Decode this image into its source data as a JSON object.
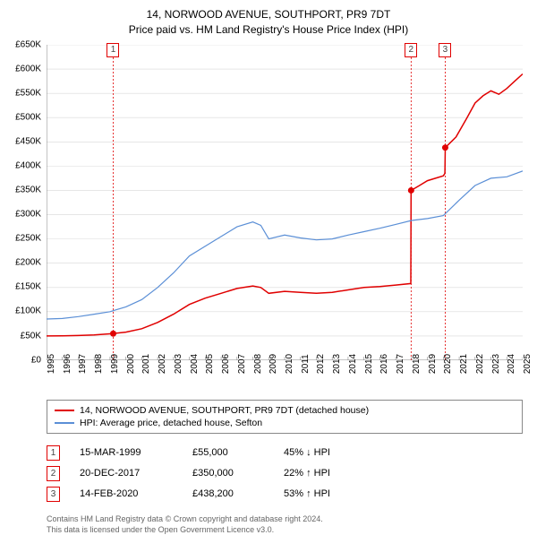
{
  "title": {
    "line1": "14, NORWOOD AVENUE, SOUTHPORT, PR9 7DT",
    "line2": "Price paid vs. HM Land Registry's House Price Index (HPI)"
  },
  "chart": {
    "type": "line",
    "x_domain": [
      1995,
      2025
    ],
    "y_domain": [
      0,
      650000
    ],
    "y_ticks": [
      0,
      50000,
      100000,
      150000,
      200000,
      250000,
      300000,
      350000,
      400000,
      450000,
      500000,
      550000,
      600000,
      650000
    ],
    "y_tick_labels": [
      "£0",
      "£50K",
      "£100K",
      "£150K",
      "£200K",
      "£250K",
      "£300K",
      "£350K",
      "£400K",
      "£450K",
      "£500K",
      "£550K",
      "£600K",
      "£650K"
    ],
    "x_ticks": [
      1995,
      1996,
      1997,
      1998,
      1999,
      2000,
      2001,
      2002,
      2003,
      2004,
      2005,
      2006,
      2007,
      2008,
      2009,
      2010,
      2011,
      2012,
      2013,
      2014,
      2015,
      2016,
      2017,
      2018,
      2019,
      2020,
      2021,
      2022,
      2023,
      2024,
      2025
    ],
    "grid_color": "#d8d8d8",
    "axis_color": "#888888",
    "background_color": "#ffffff",
    "tick_fontsize": 10,
    "series": [
      {
        "key": "property",
        "label": "14, NORWOOD AVENUE, SOUTHPORT, PR9 7DT (detached house)",
        "color": "#e00000",
        "line_width": 1.5,
        "points": [
          [
            1995.0,
            50000
          ],
          [
            1996.0,
            50500
          ],
          [
            1997.0,
            51000
          ],
          [
            1998.0,
            52000
          ],
          [
            1999.2,
            55000
          ],
          [
            2000.0,
            58000
          ],
          [
            2001.0,
            65000
          ],
          [
            2002.0,
            78000
          ],
          [
            2003.0,
            95000
          ],
          [
            2004.0,
            115000
          ],
          [
            2005.0,
            128000
          ],
          [
            2006.0,
            138000
          ],
          [
            2007.0,
            148000
          ],
          [
            2008.0,
            153000
          ],
          [
            2008.5,
            150000
          ],
          [
            2009.0,
            138000
          ],
          [
            2010.0,
            142000
          ],
          [
            2011.0,
            140000
          ],
          [
            2012.0,
            138000
          ],
          [
            2013.0,
            140000
          ],
          [
            2014.0,
            145000
          ],
          [
            2015.0,
            150000
          ],
          [
            2016.0,
            152000
          ],
          [
            2017.0,
            155000
          ],
          [
            2017.95,
            158000
          ],
          [
            2017.97,
            350000
          ],
          [
            2018.5,
            360000
          ],
          [
            2019.0,
            370000
          ],
          [
            2020.0,
            380000
          ],
          [
            2020.1,
            385000
          ],
          [
            2020.12,
            438200
          ],
          [
            2020.8,
            460000
          ],
          [
            2021.5,
            500000
          ],
          [
            2022.0,
            530000
          ],
          [
            2022.5,
            545000
          ],
          [
            2023.0,
            555000
          ],
          [
            2023.5,
            548000
          ],
          [
            2024.0,
            560000
          ],
          [
            2024.5,
            575000
          ],
          [
            2025.0,
            590000
          ]
        ]
      },
      {
        "key": "hpi",
        "label": "HPI: Average price, detached house, Sefton",
        "color": "#5b8fd6",
        "line_width": 1.2,
        "points": [
          [
            1995.0,
            85000
          ],
          [
            1996.0,
            86000
          ],
          [
            1997.0,
            90000
          ],
          [
            1998.0,
            95000
          ],
          [
            1999.0,
            100000
          ],
          [
            2000.0,
            110000
          ],
          [
            2001.0,
            125000
          ],
          [
            2002.0,
            150000
          ],
          [
            2003.0,
            180000
          ],
          [
            2004.0,
            215000
          ],
          [
            2005.0,
            235000
          ],
          [
            2006.0,
            255000
          ],
          [
            2007.0,
            275000
          ],
          [
            2008.0,
            285000
          ],
          [
            2008.5,
            278000
          ],
          [
            2009.0,
            250000
          ],
          [
            2010.0,
            258000
          ],
          [
            2011.0,
            252000
          ],
          [
            2012.0,
            248000
          ],
          [
            2013.0,
            250000
          ],
          [
            2014.0,
            258000
          ],
          [
            2015.0,
            265000
          ],
          [
            2016.0,
            272000
          ],
          [
            2017.0,
            280000
          ],
          [
            2018.0,
            288000
          ],
          [
            2019.0,
            292000
          ],
          [
            2020.0,
            298000
          ],
          [
            2021.0,
            330000
          ],
          [
            2022.0,
            360000
          ],
          [
            2023.0,
            375000
          ],
          [
            2024.0,
            378000
          ],
          [
            2025.0,
            390000
          ]
        ]
      }
    ],
    "markers": [
      {
        "id": "1",
        "x": 1999.2,
        "y": 55000
      },
      {
        "id": "2",
        "x": 2017.97,
        "y": 350000
      },
      {
        "id": "3",
        "x": 2020.12,
        "y": 438200
      }
    ]
  },
  "legend": {
    "series_labels": [
      "14, NORWOOD AVENUE, SOUTHPORT, PR9 7DT (detached house)",
      "HPI: Average price, detached house, Sefton"
    ]
  },
  "transactions": [
    {
      "id": "1",
      "date": "15-MAR-1999",
      "price": "£55,000",
      "delta": "45% ↓ HPI"
    },
    {
      "id": "2",
      "date": "20-DEC-2017",
      "price": "£350,000",
      "delta": "22% ↑ HPI"
    },
    {
      "id": "3",
      "date": "14-FEB-2020",
      "price": "£438,200",
      "delta": "53% ↑ HPI"
    }
  ],
  "footer": {
    "line1": "Contains HM Land Registry data © Crown copyright and database right 2024.",
    "line2": "This data is licensed under the Open Government Licence v3.0."
  }
}
